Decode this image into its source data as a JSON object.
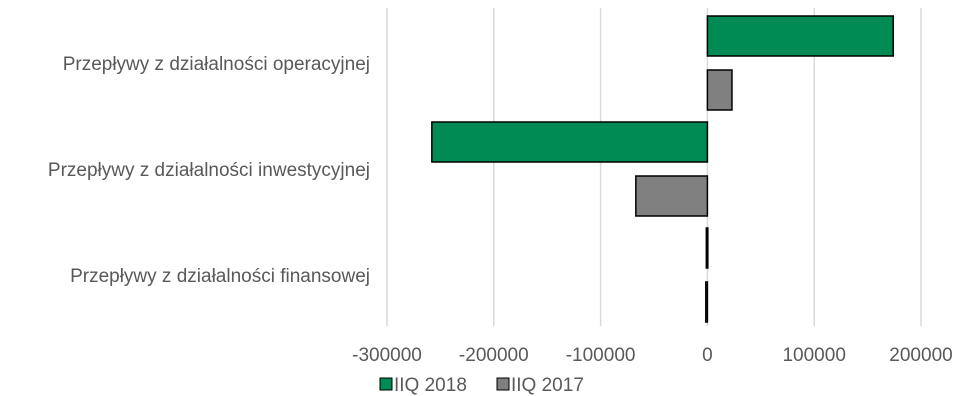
{
  "chart_data": {
    "type": "bar",
    "orientation": "horizontal",
    "categories": [
      "Przepływy z działalności operacyjnej",
      "Przepływy z działalności inwestycyjnej",
      "Przepływy z działalności finansowej"
    ],
    "series": [
      {
        "name": "IIQ 2018",
        "color": "#008a54",
        "values": [
          174000,
          -258000,
          -1000
        ]
      },
      {
        "name": "IIQ 2017",
        "color": "#808080",
        "values": [
          23000,
          -67000,
          -1500
        ]
      }
    ],
    "xlim": [
      -300000,
      200000
    ],
    "xticks": [
      -300000,
      -200000,
      -100000,
      0,
      100000,
      200000
    ],
    "xtick_labels": [
      "-300000",
      "-200000",
      "-100000",
      "0",
      "100000",
      "200000"
    ],
    "title": "",
    "xlabel": "",
    "ylabel": "",
    "grid": "vertical",
    "legend_position": "bottom"
  }
}
